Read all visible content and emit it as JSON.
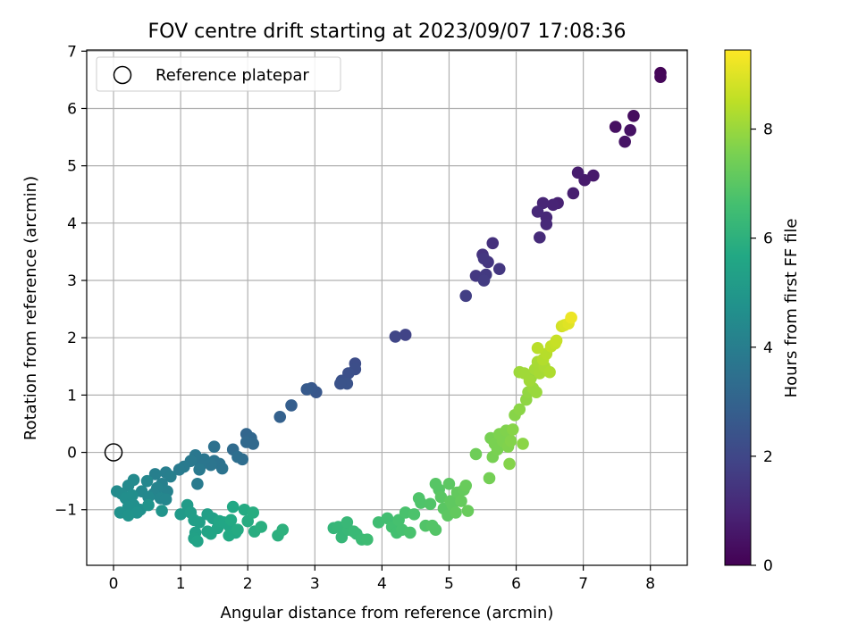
{
  "chart_data": {
    "type": "scatter",
    "title": "FOV centre drift starting at 2023/09/07 17:08:36",
    "xlabel": "Angular distance from reference (arcmin)",
    "ylabel": "Rotation from reference (arcmin)",
    "xlim": [
      -0.4,
      8.55
    ],
    "ylim": [
      -1.97,
      7.02
    ],
    "xticks": [
      0,
      1,
      2,
      3,
      4,
      5,
      6,
      7,
      8
    ],
    "yticks": [
      -1,
      0,
      1,
      2,
      3,
      4,
      5,
      6,
      7
    ],
    "grid": true,
    "legend": {
      "placement": "top-left",
      "entries": [
        {
          "label": "Reference platepar",
          "marker": "open-circle"
        }
      ]
    },
    "reference_point": {
      "x": 0,
      "y": 0
    },
    "colorbar": {
      "label": "Hours from first FF file",
      "colormap": "viridis",
      "range": [
        0,
        9.45
      ],
      "ticks": [
        0,
        2,
        4,
        6,
        8
      ]
    },
    "points": [
      [
        8.15,
        6.62,
        0.1
      ],
      [
        8.15,
        6.55,
        0.15
      ],
      [
        7.75,
        5.87,
        0.3
      ],
      [
        7.48,
        5.68,
        0.4
      ],
      [
        7.7,
        5.62,
        0.45
      ],
      [
        7.62,
        5.42,
        0.5
      ],
      [
        7.15,
        4.83,
        0.65
      ],
      [
        7.02,
        4.75,
        0.7
      ],
      [
        6.92,
        4.88,
        0.75
      ],
      [
        6.85,
        4.52,
        0.8
      ],
      [
        6.62,
        4.35,
        0.9
      ],
      [
        6.55,
        4.32,
        0.95
      ],
      [
        6.4,
        4.35,
        1.0
      ],
      [
        6.45,
        4.1,
        1.05
      ],
      [
        6.45,
        3.98,
        1.1
      ],
      [
        6.32,
        4.2,
        1.1
      ],
      [
        6.35,
        3.75,
        1.15
      ],
      [
        5.65,
        3.65,
        1.3
      ],
      [
        5.5,
        3.45,
        1.4
      ],
      [
        5.58,
        3.32,
        1.45
      ],
      [
        5.52,
        3.38,
        1.5
      ],
      [
        5.75,
        3.2,
        1.5
      ],
      [
        5.4,
        3.08,
        1.55
      ],
      [
        5.55,
        3.1,
        1.6
      ],
      [
        5.52,
        3.0,
        1.65
      ],
      [
        5.25,
        2.73,
        1.75
      ],
      [
        4.35,
        2.05,
        1.9
      ],
      [
        4.2,
        2.02,
        1.95
      ],
      [
        3.6,
        1.55,
        2.2
      ],
      [
        3.6,
        1.45,
        2.25
      ],
      [
        3.5,
        1.38,
        2.3
      ],
      [
        3.4,
        1.25,
        2.35
      ],
      [
        3.48,
        1.2,
        2.4
      ],
      [
        3.38,
        1.2,
        2.4
      ],
      [
        3.02,
        1.05,
        2.55
      ],
      [
        2.95,
        1.12,
        2.6
      ],
      [
        2.88,
        1.1,
        2.65
      ],
      [
        2.65,
        0.82,
        2.8
      ],
      [
        2.48,
        0.62,
        2.9
      ],
      [
        1.98,
        0.32,
        3.1
      ],
      [
        2.05,
        0.25,
        3.15
      ],
      [
        2.08,
        0.15,
        3.2
      ],
      [
        1.98,
        0.18,
        3.2
      ],
      [
        1.78,
        0.05,
        3.3
      ],
      [
        1.92,
        -0.12,
        3.35
      ],
      [
        1.85,
        -0.08,
        3.4
      ],
      [
        1.5,
        0.1,
        3.5
      ],
      [
        1.58,
        -0.2,
        3.55
      ],
      [
        1.62,
        -0.28,
        3.6
      ],
      [
        1.5,
        -0.15,
        3.6
      ],
      [
        1.45,
        -0.22,
        3.65
      ],
      [
        1.35,
        -0.12,
        3.7
      ],
      [
        1.3,
        -0.22,
        3.7
      ],
      [
        1.22,
        -0.05,
        3.75
      ],
      [
        1.15,
        -0.15,
        3.8
      ],
      [
        1.28,
        -0.3,
        3.8
      ],
      [
        1.05,
        -0.25,
        3.85
      ],
      [
        0.98,
        -0.3,
        3.9
      ],
      [
        1.25,
        -0.55,
        3.9
      ],
      [
        0.78,
        -0.35,
        4.0
      ],
      [
        0.85,
        -0.42,
        4.05
      ],
      [
        0.62,
        -0.38,
        4.05
      ],
      [
        0.72,
        -0.55,
        4.1
      ],
      [
        0.8,
        -0.68,
        4.15
      ],
      [
        0.65,
        -0.62,
        4.2
      ],
      [
        0.6,
        -0.72,
        4.25
      ],
      [
        0.7,
        -0.8,
        4.3
      ],
      [
        0.78,
        -0.82,
        4.3
      ],
      [
        0.5,
        -0.5,
        4.35
      ],
      [
        0.42,
        -0.68,
        4.4
      ],
      [
        0.52,
        -0.78,
        4.4
      ],
      [
        0.3,
        -0.48,
        4.45
      ],
      [
        0.22,
        -0.58,
        4.45
      ],
      [
        0.05,
        -0.68,
        4.5
      ],
      [
        0.12,
        -0.72,
        4.55
      ],
      [
        0.18,
        -0.8,
        4.6
      ],
      [
        0.28,
        -0.75,
        4.6
      ],
      [
        0.3,
        -0.92,
        4.65
      ],
      [
        0.4,
        -1.0,
        4.7
      ],
      [
        0.22,
        -0.95,
        4.7
      ],
      [
        0.35,
        -1.05,
        4.75
      ],
      [
        0.1,
        -1.05,
        4.75
      ],
      [
        0.22,
        -1.1,
        4.8
      ],
      [
        0.52,
        -0.92,
        4.8
      ],
      [
        0.72,
        -1.02,
        4.85
      ],
      [
        1.0,
        -1.08,
        5.1
      ],
      [
        1.1,
        -0.92,
        5.15
      ],
      [
        1.15,
        -1.05,
        5.2
      ],
      [
        1.2,
        -1.18,
        5.25
      ],
      [
        1.28,
        -1.22,
        5.3
      ],
      [
        1.4,
        -1.08,
        5.3
      ],
      [
        1.48,
        -1.15,
        5.35
      ],
      [
        1.22,
        -1.4,
        5.35
      ],
      [
        1.2,
        -1.5,
        5.4
      ],
      [
        1.25,
        -1.55,
        5.45
      ],
      [
        1.4,
        -1.38,
        5.45
      ],
      [
        1.45,
        -1.42,
        5.5
      ],
      [
        1.55,
        -1.32,
        5.5
      ],
      [
        1.58,
        -1.2,
        5.55
      ],
      [
        1.65,
        -1.22,
        5.6
      ],
      [
        1.72,
        -1.28,
        5.6
      ],
      [
        1.78,
        -0.95,
        5.65
      ],
      [
        1.82,
        -1.4,
        5.65
      ],
      [
        1.72,
        -1.45,
        5.7
      ],
      [
        1.75,
        -1.18,
        5.7
      ],
      [
        1.85,
        -1.35,
        5.75
      ],
      [
        1.95,
        -1.0,
        5.75
      ],
      [
        2.0,
        -1.2,
        5.8
      ],
      [
        2.08,
        -1.05,
        5.85
      ],
      [
        2.1,
        -1.38,
        5.85
      ],
      [
        2.2,
        -1.3,
        5.9
      ],
      [
        2.45,
        -1.45,
        5.95
      ],
      [
        2.52,
        -1.35,
        6.0
      ],
      [
        3.28,
        -1.32,
        6.2
      ],
      [
        3.35,
        -1.3,
        6.25
      ],
      [
        3.4,
        -1.48,
        6.25
      ],
      [
        3.5,
        -1.35,
        6.3
      ],
      [
        3.48,
        -1.22,
        6.3
      ],
      [
        3.58,
        -1.38,
        6.35
      ],
      [
        3.62,
        -1.42,
        6.35
      ],
      [
        3.7,
        -1.52,
        6.4
      ],
      [
        3.78,
        -1.52,
        6.45
      ],
      [
        3.95,
        -1.22,
        6.5
      ],
      [
        4.08,
        -1.15,
        6.55
      ],
      [
        4.15,
        -1.3,
        6.6
      ],
      [
        4.22,
        -1.4,
        6.6
      ],
      [
        4.3,
        -1.35,
        6.65
      ],
      [
        4.25,
        -1.18,
        6.65
      ],
      [
        4.35,
        -1.05,
        6.7
      ],
      [
        4.42,
        -1.4,
        6.7
      ],
      [
        4.48,
        -1.08,
        6.75
      ],
      [
        4.55,
        -0.8,
        6.8
      ],
      [
        4.58,
        -0.88,
        6.8
      ],
      [
        4.65,
        -1.28,
        6.85
      ],
      [
        4.72,
        -0.9,
        6.85
      ],
      [
        4.75,
        -1.28,
        6.9
      ],
      [
        4.8,
        -1.35,
        6.9
      ],
      [
        4.8,
        -0.55,
        6.95
      ],
      [
        4.85,
        -0.65,
        6.95
      ],
      [
        4.88,
        -0.78,
        7.0
      ],
      [
        4.92,
        -0.98,
        7.0
      ],
      [
        4.98,
        -1.1,
        7.05
      ],
      [
        5.0,
        -0.55,
        7.05
      ],
      [
        5.02,
        -0.85,
        7.1
      ],
      [
        5.05,
        -0.92,
        7.1
      ],
      [
        5.1,
        -1.05,
        7.15
      ],
      [
        5.12,
        -0.7,
        7.15
      ],
      [
        5.18,
        -0.85,
        7.2
      ],
      [
        5.22,
        -0.65,
        7.2
      ],
      [
        5.25,
        -0.58,
        7.25
      ],
      [
        5.28,
        -1.02,
        7.25
      ],
      [
        5.4,
        -0.03,
        7.35
      ],
      [
        5.6,
        -0.45,
        7.45
      ],
      [
        5.62,
        0.25,
        7.5
      ],
      [
        5.65,
        -0.08,
        7.5
      ],
      [
        5.68,
        0.15,
        7.55
      ],
      [
        5.72,
        0.05,
        7.55
      ],
      [
        5.75,
        0.32,
        7.6
      ],
      [
        5.8,
        0.2,
        7.6
      ],
      [
        5.85,
        0.38,
        7.65
      ],
      [
        5.88,
        0.1,
        7.65
      ],
      [
        5.9,
        -0.2,
        7.7
      ],
      [
        5.92,
        0.2,
        7.7
      ],
      [
        5.95,
        0.4,
        7.75
      ],
      [
        5.98,
        0.65,
        7.75
      ],
      [
        6.05,
        0.75,
        7.8
      ],
      [
        6.1,
        0.15,
        7.8
      ],
      [
        6.15,
        0.92,
        7.85
      ],
      [
        6.18,
        1.05,
        7.9
      ],
      [
        6.22,
        1.3,
        7.95
      ],
      [
        6.25,
        1.12,
        8.0
      ],
      [
        6.3,
        1.05,
        8.0
      ],
      [
        6.05,
        1.4,
        8.05
      ],
      [
        6.12,
        1.38,
        8.1
      ],
      [
        6.2,
        1.25,
        8.1
      ],
      [
        6.28,
        1.45,
        8.15
      ],
      [
        6.35,
        1.38,
        8.2
      ],
      [
        6.32,
        1.58,
        8.2
      ],
      [
        6.42,
        1.5,
        8.25
      ],
      [
        6.5,
        1.4,
        8.3
      ],
      [
        6.4,
        1.62,
        8.35
      ],
      [
        6.45,
        1.72,
        8.4
      ],
      [
        6.32,
        1.82,
        8.45
      ],
      [
        6.52,
        1.85,
        8.55
      ],
      [
        6.58,
        1.9,
        8.6
      ],
      [
        6.6,
        1.95,
        8.65
      ],
      [
        6.68,
        2.2,
        8.8
      ],
      [
        6.72,
        2.22,
        8.9
      ],
      [
        6.78,
        2.25,
        9.0
      ],
      [
        6.82,
        2.35,
        9.2
      ]
    ]
  }
}
